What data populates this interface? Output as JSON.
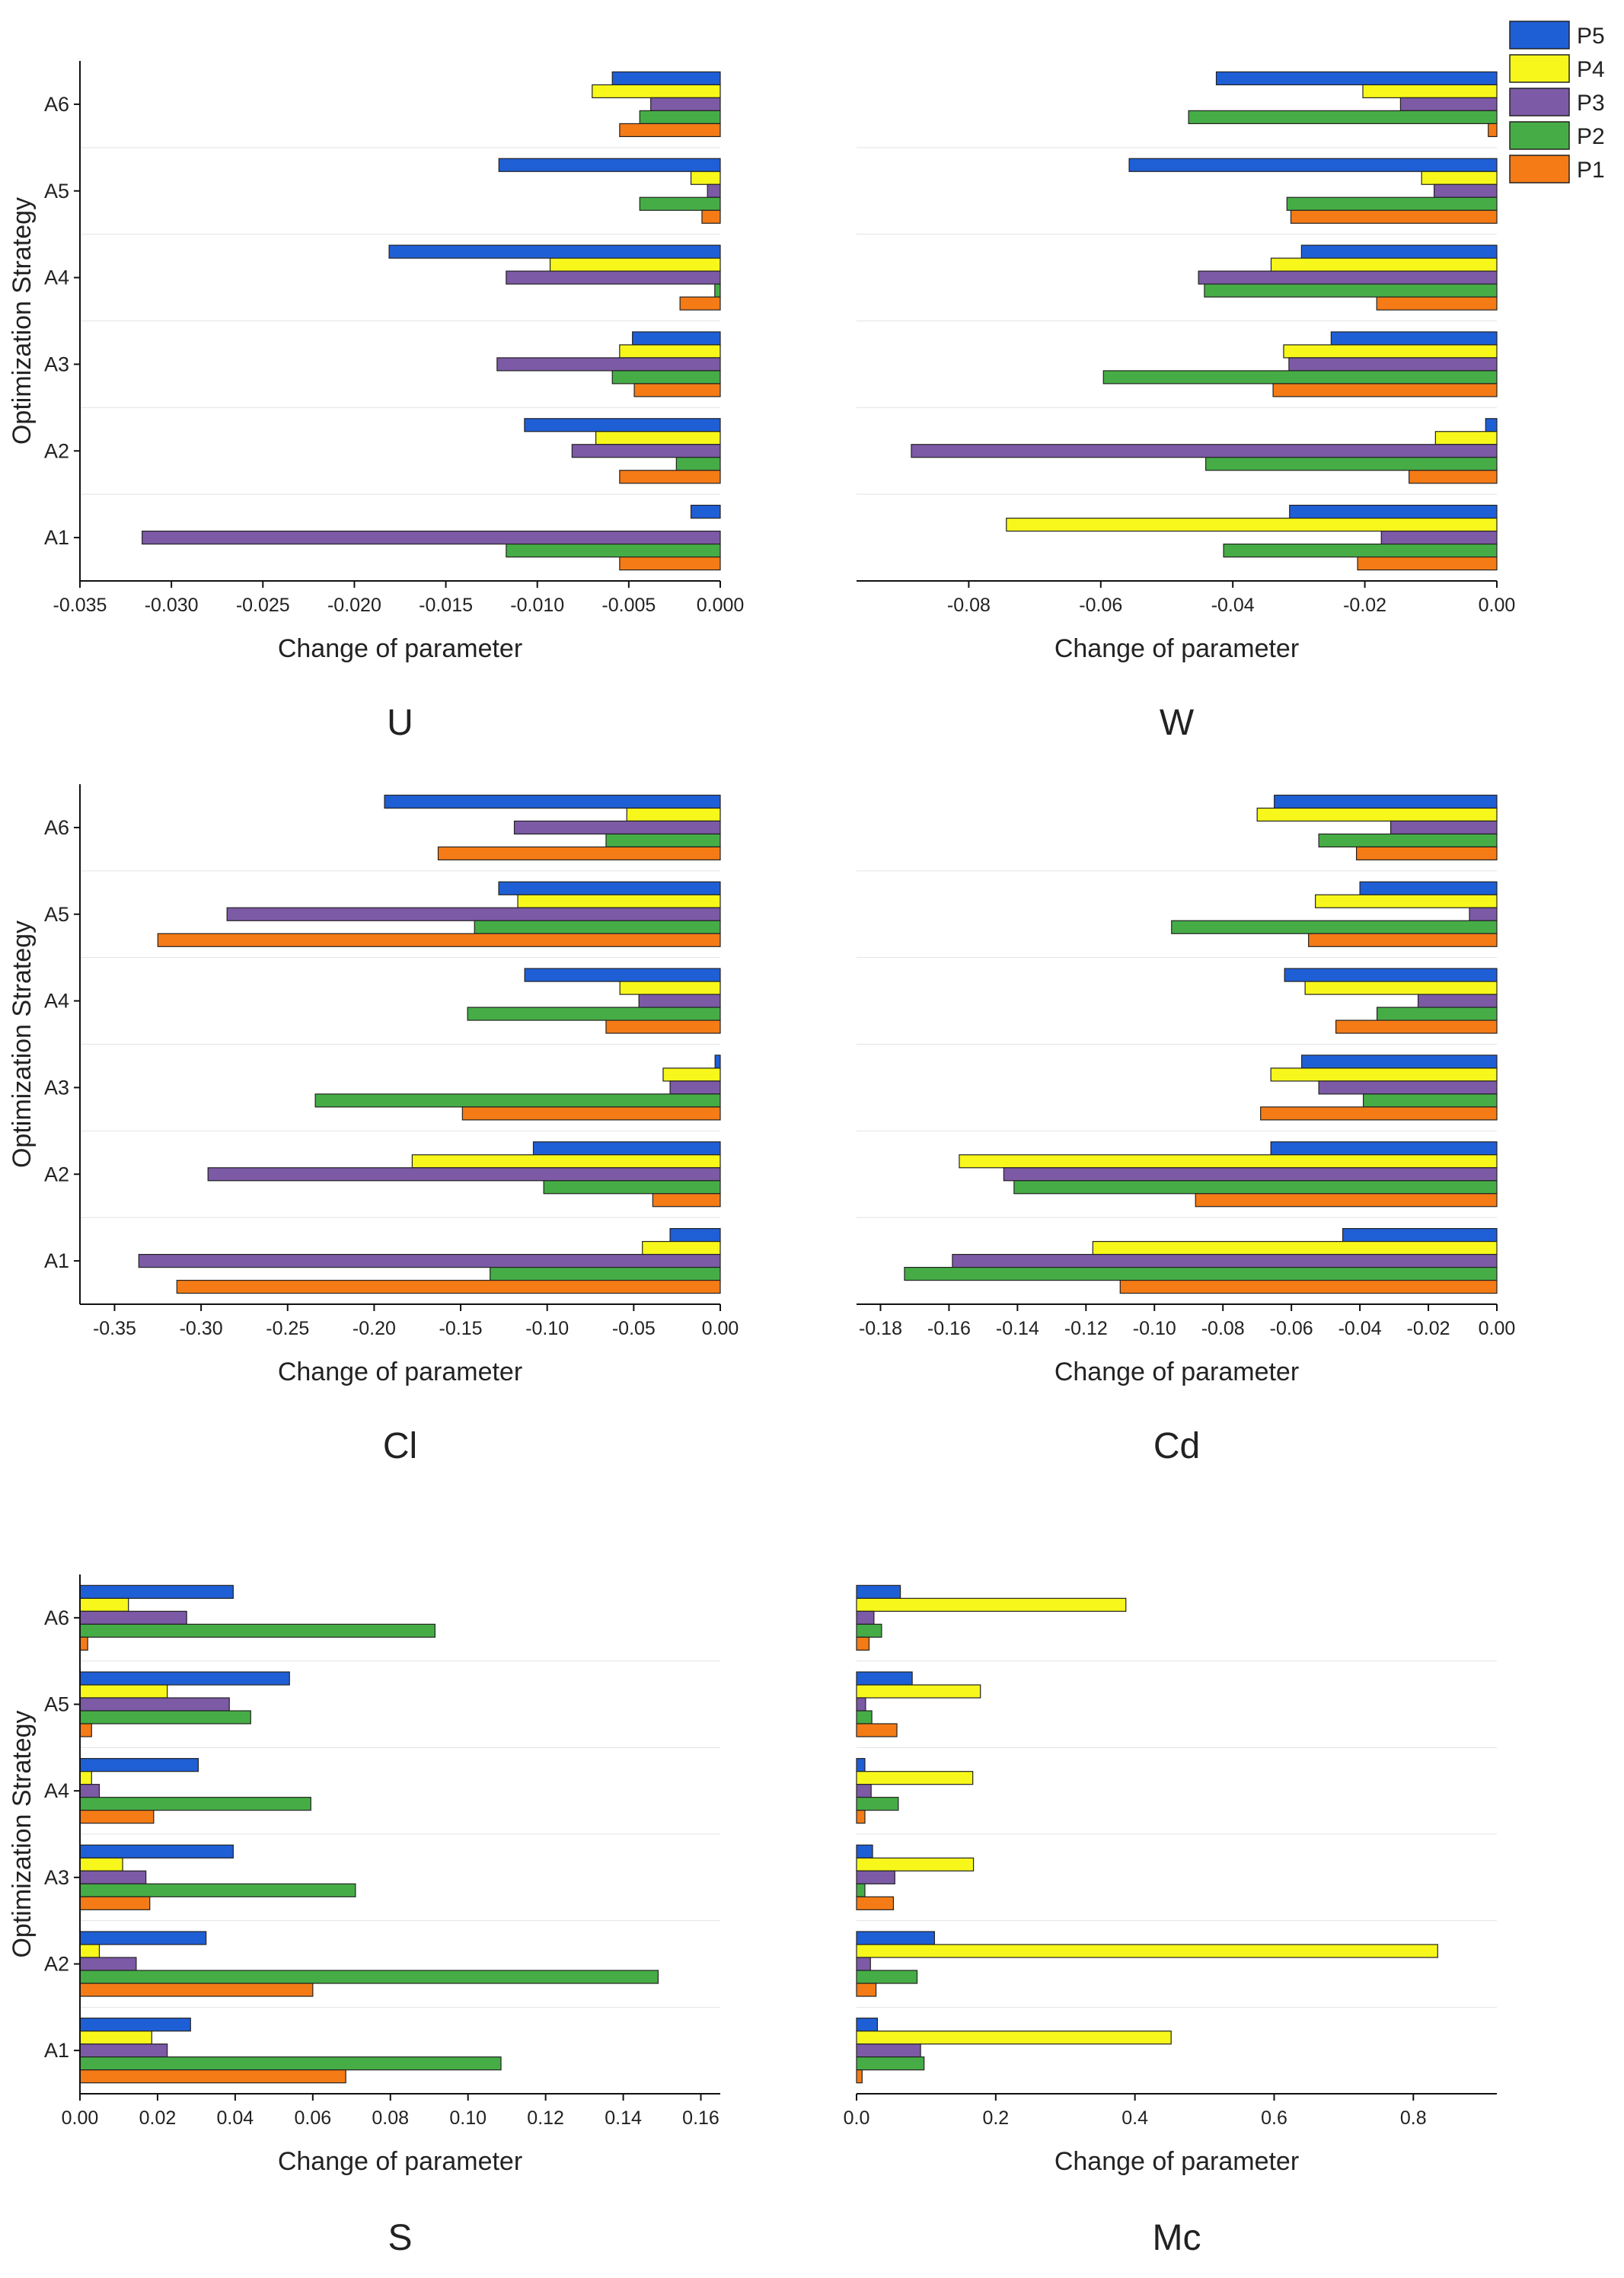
{
  "legend": {
    "entries": [
      {
        "name": "P5",
        "color": "#1f5fd6"
      },
      {
        "name": "P4",
        "color": "#f7f71b"
      },
      {
        "name": "P3",
        "color": "#7c5aa6"
      },
      {
        "name": "P2",
        "color": "#46ad46"
      },
      {
        "name": "P1",
        "color": "#f47b16"
      }
    ]
  },
  "chart_data": [
    {
      "type": "bar",
      "orientation": "horizontal",
      "panel": "U",
      "title": "U",
      "xlabel": "Change of parameter",
      "ylabel": "Optimization Strategy",
      "categories": [
        "A1",
        "A2",
        "A3",
        "A4",
        "A5",
        "A6"
      ],
      "xlim": [
        -0.035,
        0.0
      ],
      "xticks": [
        -0.035,
        -0.03,
        -0.025,
        -0.02,
        -0.015,
        -0.01,
        -0.005,
        0.0
      ],
      "xtick_labels": [
        "-0.035",
        "-0.030",
        "-0.025",
        "-0.020",
        "-0.015",
        "-0.010",
        "-0.005",
        "0.000"
      ],
      "series": [
        {
          "name": "P5",
          "values": [
            -0.0016,
            -0.0107,
            -0.0048,
            -0.0181,
            -0.0121,
            -0.0059
          ]
        },
        {
          "name": "P4",
          "values": [
            0.0,
            -0.0068,
            -0.0055,
            -0.0093,
            -0.0016,
            -0.007
          ]
        },
        {
          "name": "P3",
          "values": [
            -0.0316,
            -0.0081,
            -0.0122,
            -0.0117,
            -0.0007,
            -0.0038
          ]
        },
        {
          "name": "P2",
          "values": [
            -0.0117,
            -0.0024,
            -0.0059,
            -0.0003,
            -0.0044,
            -0.0044
          ]
        },
        {
          "name": "P1",
          "values": [
            -0.0055,
            -0.0055,
            -0.0047,
            -0.0022,
            -0.001,
            -0.0055
          ]
        }
      ]
    },
    {
      "type": "bar",
      "orientation": "horizontal",
      "panel": "W",
      "title": "W",
      "xlabel": "Change of parameter",
      "ylabel": "",
      "categories": [
        "A1",
        "A2",
        "A3",
        "A4",
        "A5",
        "A6"
      ],
      "xlim": [
        -0.097,
        0.0
      ],
      "xticks": [
        -0.08,
        -0.06,
        -0.04,
        -0.02,
        0.0
      ],
      "xtick_labels": [
        "-0.08",
        "-0.06",
        "-0.04",
        "-0.02",
        "0.00"
      ],
      "series": [
        {
          "name": "P5",
          "values": [
            -0.0314,
            -0.0017,
            -0.0251,
            -0.0296,
            -0.0557,
            -0.0425
          ]
        },
        {
          "name": "P4",
          "values": [
            -0.0743,
            -0.0093,
            -0.0323,
            -0.0342,
            -0.0114,
            -0.0203
          ]
        },
        {
          "name": "P3",
          "values": [
            -0.0175,
            -0.0887,
            -0.0315,
            -0.0452,
            -0.0095,
            -0.0146
          ]
        },
        {
          "name": "P2",
          "values": [
            -0.0414,
            -0.0441,
            -0.0596,
            -0.0443,
            -0.0318,
            -0.0467
          ]
        },
        {
          "name": "P1",
          "values": [
            -0.0211,
            -0.0133,
            -0.0339,
            -0.0182,
            -0.0312,
            -0.0013
          ]
        }
      ]
    },
    {
      "type": "bar",
      "orientation": "horizontal",
      "panel": "Cl",
      "title": "Cl",
      "xlabel": "Change of parameter",
      "ylabel": "Optimization Strategy",
      "categories": [
        "A1",
        "A2",
        "A3",
        "A4",
        "A5",
        "A6"
      ],
      "xlim": [
        -0.37,
        0.0
      ],
      "xticks": [
        -0.35,
        -0.3,
        -0.25,
        -0.2,
        -0.15,
        -0.1,
        -0.05,
        0.0
      ],
      "xtick_labels": [
        "-0.35",
        "-0.30",
        "-0.25",
        "-0.20",
        "-0.15",
        "-0.10",
        "-0.05",
        "0.00"
      ],
      "series": [
        {
          "name": "P5",
          "values": [
            -0.029,
            -0.108,
            -0.003,
            -0.113,
            -0.128,
            -0.194
          ]
        },
        {
          "name": "P4",
          "values": [
            -0.045,
            -0.178,
            -0.033,
            -0.058,
            -0.117,
            -0.054
          ]
        },
        {
          "name": "P3",
          "values": [
            -0.336,
            -0.296,
            -0.029,
            -0.047,
            -0.285,
            -0.119
          ]
        },
        {
          "name": "P2",
          "values": [
            -0.133,
            -0.102,
            -0.234,
            -0.146,
            -0.142,
            -0.066
          ]
        },
        {
          "name": "P1",
          "values": [
            -0.314,
            -0.039,
            -0.149,
            -0.066,
            -0.325,
            -0.163
          ]
        }
      ]
    },
    {
      "type": "bar",
      "orientation": "horizontal",
      "panel": "Cd",
      "title": "Cd",
      "xlabel": "Change of parameter",
      "ylabel": "",
      "categories": [
        "A1",
        "A2",
        "A3",
        "A4",
        "A5",
        "A6"
      ],
      "xlim": [
        -0.187,
        0.0
      ],
      "xticks": [
        -0.18,
        -0.16,
        -0.14,
        -0.12,
        -0.1,
        -0.08,
        -0.06,
        -0.04,
        -0.02,
        0.0
      ],
      "xtick_labels": [
        "-0.18",
        "-0.16",
        "-0.14",
        "-0.12",
        "-0.10",
        "-0.08",
        "-0.06",
        "-0.04",
        "-0.02",
        "0.00"
      ],
      "series": [
        {
          "name": "P5",
          "values": [
            -0.045,
            -0.066,
            -0.057,
            -0.062,
            -0.04,
            -0.065
          ]
        },
        {
          "name": "P4",
          "values": [
            -0.118,
            -0.157,
            -0.066,
            -0.056,
            -0.053,
            -0.07
          ]
        },
        {
          "name": "P3",
          "values": [
            -0.159,
            -0.144,
            -0.052,
            -0.023,
            -0.008,
            -0.031
          ]
        },
        {
          "name": "P2",
          "values": [
            -0.173,
            -0.141,
            -0.039,
            -0.035,
            -0.095,
            -0.052
          ]
        },
        {
          "name": "P1",
          "values": [
            -0.11,
            -0.088,
            -0.069,
            -0.047,
            -0.055,
            -0.041
          ]
        }
      ]
    },
    {
      "type": "bar",
      "orientation": "horizontal",
      "panel": "S",
      "title": "S",
      "xlabel": "Change of parameter",
      "ylabel": "Optimization Strategy",
      "categories": [
        "A1",
        "A2",
        "A3",
        "A4",
        "A5",
        "A6"
      ],
      "xlim": [
        0.0,
        0.165
      ],
      "xticks": [
        0.0,
        0.02,
        0.04,
        0.06,
        0.08,
        0.1,
        0.12,
        0.14,
        0.16
      ],
      "xtick_labels": [
        "0.00",
        "0.02",
        "0.04",
        "0.06",
        "0.08",
        "0.10",
        "0.12",
        "0.14",
        "0.16"
      ],
      "series": [
        {
          "name": "P5",
          "values": [
            0.0285,
            0.0325,
            0.0395,
            0.0305,
            0.054,
            0.0395
          ]
        },
        {
          "name": "P4",
          "values": [
            0.0185,
            0.005,
            0.011,
            0.003,
            0.0225,
            0.0125
          ]
        },
        {
          "name": "P3",
          "values": [
            0.0225,
            0.0145,
            0.017,
            0.005,
            0.0385,
            0.0275
          ]
        },
        {
          "name": "P2",
          "values": [
            0.1085,
            0.149,
            0.071,
            0.0595,
            0.044,
            0.0915
          ]
        },
        {
          "name": "P1",
          "values": [
            0.0685,
            0.06,
            0.018,
            0.019,
            0.003,
            0.002
          ]
        }
      ]
    },
    {
      "type": "bar",
      "orientation": "horizontal",
      "panel": "Mc",
      "title": "Mc",
      "xlabel": "Change of parameter",
      "ylabel": "",
      "categories": [
        "A1",
        "A2",
        "A3",
        "A4",
        "A5",
        "A6"
      ],
      "xlim": [
        0.0,
        0.92
      ],
      "xticks": [
        0.0,
        0.2,
        0.4,
        0.6,
        0.8
      ],
      "xtick_labels": [
        "0.0",
        "0.2",
        "0.4",
        "0.6",
        "0.8"
      ],
      "series": [
        {
          "name": "P5",
          "values": [
            0.03,
            0.112,
            0.023,
            0.012,
            0.08,
            0.063
          ]
        },
        {
          "name": "P4",
          "values": [
            0.452,
            0.835,
            0.168,
            0.167,
            0.178,
            0.387
          ]
        },
        {
          "name": "P3",
          "values": [
            0.092,
            0.02,
            0.055,
            0.021,
            0.013,
            0.025
          ]
        },
        {
          "name": "P2",
          "values": [
            0.097,
            0.087,
            0.012,
            0.06,
            0.022,
            0.036
          ]
        },
        {
          "name": "P1",
          "values": [
            0.008,
            0.028,
            0.053,
            0.012,
            0.058,
            0.018
          ]
        }
      ]
    }
  ]
}
